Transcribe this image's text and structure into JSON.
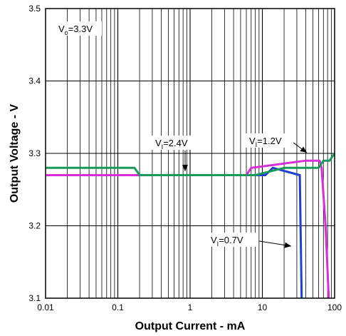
{
  "chart_data": {
    "type": "line",
    "xlabel": "Output Current - mA",
    "ylabel": "Output Voltage - V",
    "x_scale": "log",
    "xlim": [
      0.01,
      100
    ],
    "ylim": [
      3.1,
      3.5
    ],
    "grid": true,
    "x_ticks": [
      "0.01",
      "0.1",
      "1",
      "10",
      "100"
    ],
    "y_ticks": [
      "3.1",
      "3.2",
      "3.3",
      "3.4",
      "3.5"
    ],
    "condition_label": {
      "main": "V",
      "sub": "o",
      "rest": "=3.3V"
    },
    "series": [
      {
        "label": {
          "main": "V",
          "sub": "I",
          "rest": "=0.7V"
        },
        "color": "#1f3fcf",
        "x": [
          0.01,
          0.2,
          11,
          14,
          33,
          35
        ],
        "y": [
          3.27,
          3.27,
          3.27,
          3.28,
          3.27,
          3.1
        ]
      },
      {
        "label": {
          "main": "V",
          "sub": "I",
          "rest": "=1.2V"
        },
        "color": "#d52fd5",
        "x": [
          0.01,
          0.2,
          6,
          7,
          40,
          62,
          66,
          75,
          83
        ],
        "y": [
          3.27,
          3.27,
          3.27,
          3.28,
          3.29,
          3.29,
          3.28,
          3.2,
          3.1
        ]
      },
      {
        "label": {
          "main": "V",
          "sub": "I",
          "rest": "=2.4V"
        },
        "color": "#1a9a5a",
        "x": [
          0.01,
          0.17,
          0.2,
          8,
          20,
          60,
          70,
          85,
          100
        ],
        "y": [
          3.28,
          3.28,
          3.27,
          3.27,
          3.28,
          3.28,
          3.29,
          3.29,
          3.3
        ]
      }
    ]
  }
}
